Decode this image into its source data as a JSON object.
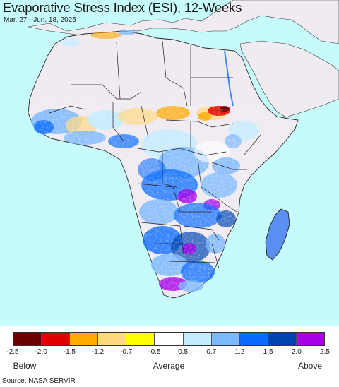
{
  "title": "Evaporative Stress Index (ESI), 12-Weeks",
  "subtitle": "Mar. 27 - Jun. 18, 2025",
  "legend": {
    "colors": [
      "#6b0000",
      "#e00000",
      "#ffaa00",
      "#ffd980",
      "#ffff00",
      "#ffffff",
      "#c4ecff",
      "#7ab8ff",
      "#0a6cff",
      "#0044b0",
      "#a600e8"
    ],
    "ticks": [
      "-2.5",
      "-2.0",
      "-1.5",
      "-1.2",
      "-0.7",
      "-0.5",
      "0.5",
      "0.7",
      "1.2",
      "1.5",
      "2.0",
      "2.5"
    ],
    "categories": [
      "Below",
      "Average",
      "Above"
    ]
  },
  "source": "Source: NASA SERVIR",
  "map": {
    "ocean_color": "#c7fbfb",
    "land_color": "#efebf1",
    "border_color": "#222222"
  }
}
